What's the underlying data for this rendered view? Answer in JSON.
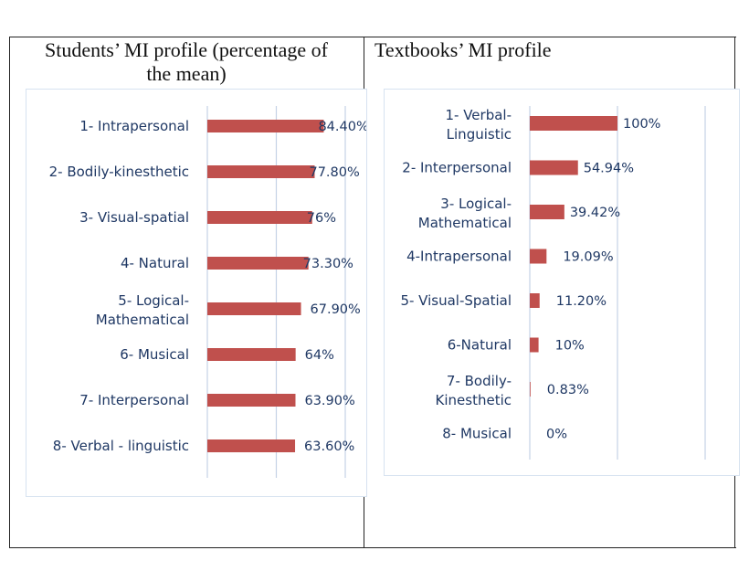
{
  "table": {
    "left_title_line1": "Students’ MI profile (percentage of",
    "left_title_line2": "the mean)",
    "right_title": "Textbooks’ MI profile"
  },
  "colors": {
    "bar": "#c0504d",
    "label": "#1f3864",
    "grid": "#c5d3e6",
    "panel_border": "#d6e2f0"
  },
  "chart_data": [
    {
      "type": "bar",
      "orientation": "horizontal",
      "categories": [
        [
          "1- Intrapersonal"
        ],
        [
          "2- Bodily-kinesthetic"
        ],
        [
          "3- Visual-spatial"
        ],
        [
          "4- Natural"
        ],
        [
          "5-  Logical-",
          "Mathematical"
        ],
        [
          "6- Musical"
        ],
        [
          "7- Interpersonal"
        ],
        [
          "8- Verbal - linguistic"
        ]
      ],
      "values": [
        84.4,
        77.8,
        76,
        73.3,
        67.9,
        64,
        63.9,
        63.6
      ],
      "data_labels": [
        "84.40%",
        "77.80%",
        "76%",
        "73.30%",
        "67.90%",
        "64%",
        "63.90%",
        "63.60%"
      ],
      "xlim": [
        0,
        100
      ],
      "grid": true
    },
    {
      "type": "bar",
      "orientation": "horizontal",
      "categories": [
        [
          "1- Verbal-",
          "Linguistic"
        ],
        [
          "2- Interpersonal"
        ],
        [
          "3- Logical-",
          "Mathematical"
        ],
        [
          "4-Intrapersonal"
        ],
        [
          "5- Visual-Spatial"
        ],
        [
          "6-Natural"
        ],
        [
          "7- Bodily-",
          "Kinesthetic"
        ],
        [
          "8- Musical"
        ]
      ],
      "values": [
        100,
        54.94,
        39.42,
        19.09,
        11.2,
        10,
        0.83,
        0
      ],
      "data_labels": [
        "100%",
        "54.94%",
        "39.42%",
        "19.09%",
        "11.20%",
        "10%",
        "0.83%",
        "0%"
      ],
      "xlim": [
        0,
        100
      ],
      "grid": true
    }
  ]
}
